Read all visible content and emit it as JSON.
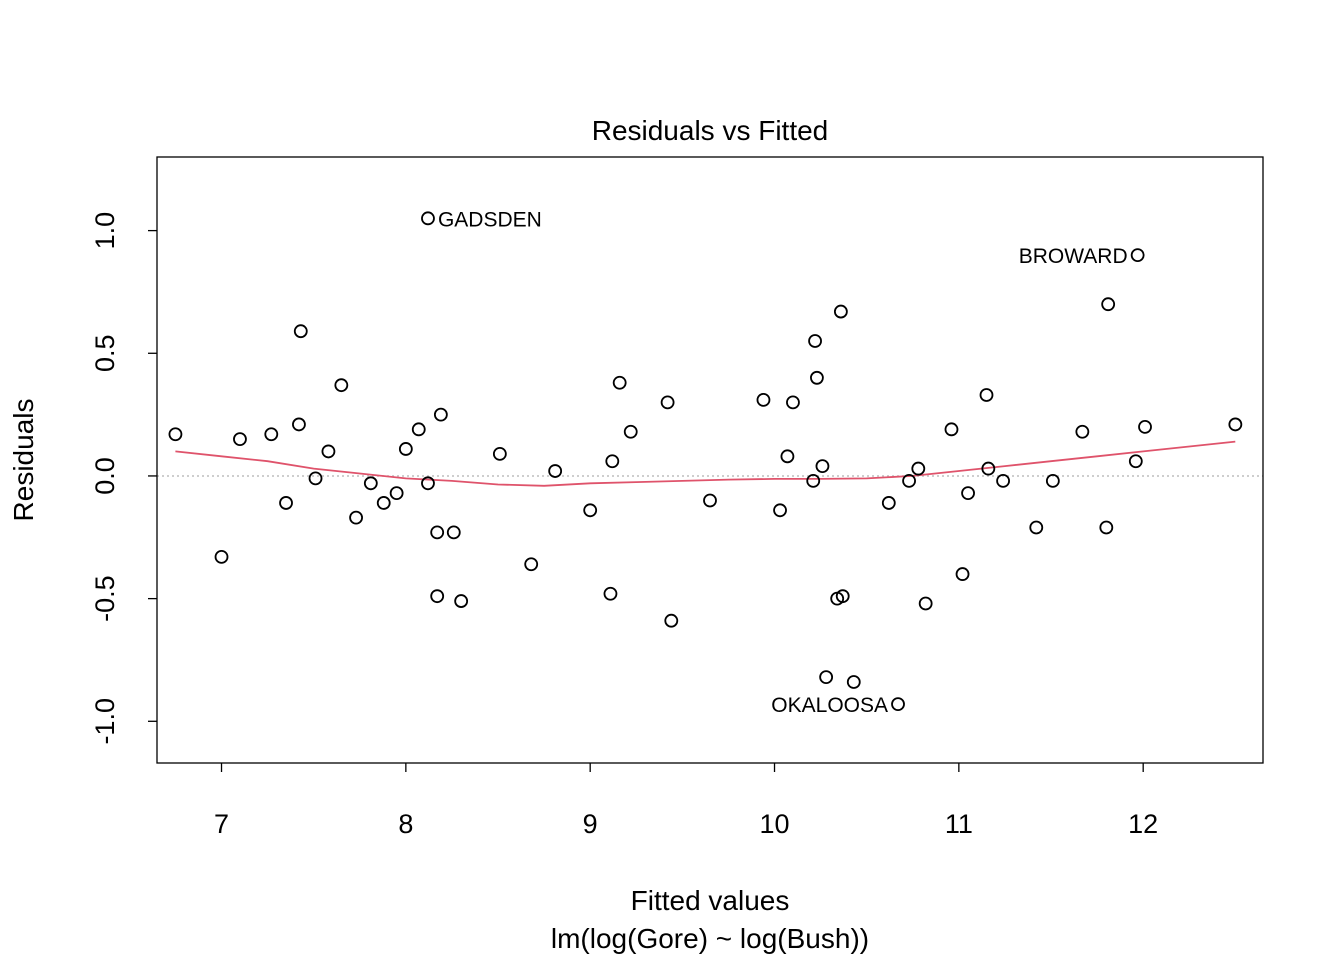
{
  "chart_data": {
    "type": "scatter",
    "title": "Residuals vs Fitted",
    "xlabel": "Fitted values",
    "subtitle": "lm(log(Gore) ~ log(Bush))",
    "ylabel": "Residuals",
    "xlim": [
      6.65,
      12.65
    ],
    "ylim": [
      -1.17,
      1.3
    ],
    "x_ticks": [
      7,
      8,
      9,
      10,
      11,
      12
    ],
    "y_ticks": [
      -1.0,
      -0.5,
      0.0,
      0.5,
      1.0
    ],
    "x_tick_labels": [
      "7",
      "8",
      "9",
      "10",
      "11",
      "12"
    ],
    "y_tick_labels": [
      "-1.0",
      "-0.5",
      "0.0",
      "0.5",
      "1.0"
    ],
    "reference_line_y": 0,
    "points": [
      [
        6.75,
        0.17
      ],
      [
        7.0,
        -0.33
      ],
      [
        7.1,
        0.15
      ],
      [
        7.27,
        0.17
      ],
      [
        7.35,
        -0.11
      ],
      [
        7.42,
        0.21
      ],
      [
        7.43,
        0.59
      ],
      [
        7.51,
        -0.01
      ],
      [
        7.58,
        0.1
      ],
      [
        7.65,
        0.37
      ],
      [
        7.73,
        -0.17
      ],
      [
        7.81,
        -0.03
      ],
      [
        7.88,
        -0.11
      ],
      [
        7.95,
        -0.07
      ],
      [
        8.0,
        0.11
      ],
      [
        8.07,
        0.19
      ],
      [
        8.12,
        -0.03
      ],
      [
        8.12,
        1.05
      ],
      [
        8.17,
        -0.23
      ],
      [
        8.17,
        -0.49
      ],
      [
        8.19,
        0.25
      ],
      [
        8.26,
        -0.23
      ],
      [
        8.3,
        -0.51
      ],
      [
        8.51,
        0.09
      ],
      [
        8.68,
        -0.36
      ],
      [
        8.81,
        0.02
      ],
      [
        9.0,
        -0.14
      ],
      [
        9.11,
        -0.48
      ],
      [
        9.12,
        0.06
      ],
      [
        9.16,
        0.38
      ],
      [
        9.22,
        0.18
      ],
      [
        9.42,
        0.3
      ],
      [
        9.44,
        -0.59
      ],
      [
        9.65,
        -0.1
      ],
      [
        9.94,
        0.31
      ],
      [
        10.03,
        -0.14
      ],
      [
        10.07,
        0.08
      ],
      [
        10.1,
        0.3
      ],
      [
        10.21,
        -0.02
      ],
      [
        10.22,
        0.55
      ],
      [
        10.23,
        0.4
      ],
      [
        10.26,
        0.04
      ],
      [
        10.28,
        -0.82
      ],
      [
        10.34,
        -0.5
      ],
      [
        10.36,
        0.67
      ],
      [
        10.37,
        -0.49
      ],
      [
        10.43,
        -0.84
      ],
      [
        10.62,
        -0.11
      ],
      [
        10.67,
        -0.93
      ],
      [
        10.73,
        -0.02
      ],
      [
        10.78,
        0.03
      ],
      [
        10.82,
        -0.52
      ],
      [
        10.96,
        0.19
      ],
      [
        11.02,
        -0.4
      ],
      [
        11.05,
        -0.07
      ],
      [
        11.15,
        0.33
      ],
      [
        11.16,
        0.03
      ],
      [
        11.24,
        -0.02
      ],
      [
        11.42,
        -0.21
      ],
      [
        11.51,
        -0.02
      ],
      [
        11.67,
        0.18
      ],
      [
        11.8,
        -0.21
      ],
      [
        11.81,
        0.7
      ],
      [
        11.96,
        0.06
      ],
      [
        11.97,
        0.9
      ],
      [
        12.01,
        0.2
      ],
      [
        12.5,
        0.21
      ]
    ],
    "smooth_line": [
      [
        6.75,
        0.1
      ],
      [
        7.0,
        0.08
      ],
      [
        7.25,
        0.06
      ],
      [
        7.5,
        0.03
      ],
      [
        7.75,
        0.01
      ],
      [
        8.0,
        -0.01
      ],
      [
        8.25,
        -0.02
      ],
      [
        8.5,
        -0.035
      ],
      [
        8.75,
        -0.04
      ],
      [
        9.0,
        -0.03
      ],
      [
        9.25,
        -0.025
      ],
      [
        9.5,
        -0.02
      ],
      [
        9.75,
        -0.015
      ],
      [
        10.0,
        -0.012
      ],
      [
        10.25,
        -0.012
      ],
      [
        10.5,
        -0.01
      ],
      [
        10.75,
        0.0
      ],
      [
        11.0,
        0.02
      ],
      [
        11.25,
        0.04
      ],
      [
        11.5,
        0.06
      ],
      [
        11.75,
        0.08
      ],
      [
        12.0,
        0.1
      ],
      [
        12.25,
        0.12
      ],
      [
        12.5,
        0.14
      ]
    ],
    "annotations": [
      {
        "label": "GADSDEN",
        "x": 8.12,
        "y": 1.05,
        "side": "right"
      },
      {
        "label": "BROWARD",
        "x": 11.97,
        "y": 0.9,
        "side": "left"
      },
      {
        "label": "OKALOOSA",
        "x": 10.67,
        "y": -0.93,
        "side": "left"
      }
    ],
    "colors": {
      "points": "#000000",
      "smooth_line": "#DF536B",
      "reference_line": "#BEBEBE",
      "frame": "#000000"
    }
  }
}
